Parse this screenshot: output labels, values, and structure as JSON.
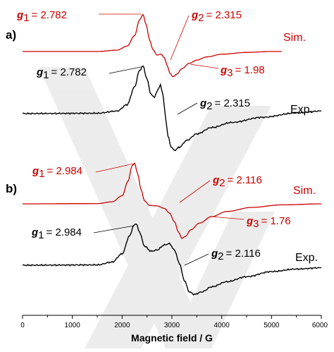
{
  "chart_data": {
    "type": "line",
    "xlabel": "Magnetic field / G",
    "xlim": [
      0,
      6000
    ],
    "x_ticks": [
      "0",
      "1000",
      "2000",
      "3000",
      "4000",
      "5000",
      "6000"
    ],
    "colors": {
      "simulated": "#cc0000",
      "experimental": "#000000"
    },
    "panels": [
      {
        "label": "a)",
        "series": [
          {
            "name": "Sim.",
            "color": "#cc0000",
            "points": [
              [
                0,
                0
              ],
              [
                1500,
                0
              ],
              [
                1900,
                0.3
              ],
              [
                2100,
                1.2
              ],
              [
                2250,
                3.5
              ],
              [
                2350,
                7.0
              ],
              [
                2420,
                8.2
              ],
              [
                2480,
                6.0
              ],
              [
                2550,
                2.6
              ],
              [
                2620,
                0.4
              ],
              [
                2700,
                -0.8
              ],
              [
                2780,
                -0.6
              ],
              [
                2850,
                -1.4
              ],
              [
                2900,
                -3.0
              ],
              [
                2960,
                -4.8
              ],
              [
                3020,
                -5.6
              ],
              [
                3100,
                -5.0
              ],
              [
                3200,
                -3.8
              ],
              [
                3350,
                -2.6
              ],
              [
                3500,
                -1.9
              ],
              [
                3700,
                -1.2
              ],
              [
                4000,
                -0.6
              ],
              [
                4500,
                -0.2
              ],
              [
                5000,
                0
              ],
              [
                5200,
                0
              ]
            ],
            "annotations": [
              {
                "sym": "g",
                "sub": "1",
                "value": "= 2.782"
              },
              {
                "sym": "g",
                "sub": "2",
                "value": "= 2.315"
              },
              {
                "sym": "g",
                "sub": "3",
                "value": "= 1.98"
              }
            ]
          },
          {
            "name": "Exp.",
            "color": "#000000",
            "points": [
              [
                0,
                0
              ],
              [
                1500,
                0.05
              ],
              [
                1900,
                0.4
              ],
              [
                2100,
                1.4
              ],
              [
                2250,
                4.2
              ],
              [
                2350,
                6.8
              ],
              [
                2420,
                7.5
              ],
              [
                2500,
                5.4
              ],
              [
                2580,
                3.0
              ],
              [
                2650,
                2.6
              ],
              [
                2720,
                3.8
              ],
              [
                2770,
                4.5
              ],
              [
                2820,
                3.0
              ],
              [
                2870,
                -0.5
              ],
              [
                2920,
                -3.5
              ],
              [
                2980,
                -5.2
              ],
              [
                3050,
                -5.8
              ],
              [
                3150,
                -5.3
              ],
              [
                3300,
                -4.2
              ],
              [
                3500,
                -3.2
              ],
              [
                3800,
                -2.2
              ],
              [
                4200,
                -1.4
              ],
              [
                4800,
                -0.6
              ],
              [
                5500,
                0.1
              ],
              [
                6000,
                0.4
              ]
            ],
            "annotations": [
              {
                "sym": "g",
                "sub": "1",
                "value": "= 2.782"
              },
              {
                "sym": "g",
                "sub": "2",
                "value": "= 2.315"
              }
            ]
          }
        ]
      },
      {
        "label": "b)",
        "series": [
          {
            "name": "Sim.",
            "color": "#cc0000",
            "points": [
              [
                0,
                0
              ],
              [
                1500,
                0.05
              ],
              [
                1800,
                0.4
              ],
              [
                2000,
                1.6
              ],
              [
                2120,
                4.5
              ],
              [
                2200,
                7.5
              ],
              [
                2250,
                8.0
              ],
              [
                2310,
                6.0
              ],
              [
                2380,
                2.8
              ],
              [
                2450,
                0.6
              ],
              [
                2550,
                -0.3
              ],
              [
                2700,
                -0.4
              ],
              [
                2850,
                -0.9
              ],
              [
                2950,
                -1.8
              ],
              [
                3050,
                -3.5
              ],
              [
                3130,
                -5.5
              ],
              [
                3200,
                -6.8
              ],
              [
                3270,
                -6.4
              ],
              [
                3380,
                -5.1
              ],
              [
                3550,
                -3.8
              ],
              [
                3800,
                -2.5
              ],
              [
                4100,
                -1.5
              ],
              [
                4600,
                -0.7
              ],
              [
                5200,
                -0.2
              ],
              [
                6000,
                0
              ]
            ],
            "annotations": [
              {
                "sym": "g",
                "sub": "1",
                "value": "= 2.984"
              },
              {
                "sym": "g",
                "sub": "2",
                "value": "= 2.116"
              },
              {
                "sym": "g",
                "sub": "3",
                "value": "= 1.76"
              }
            ]
          },
          {
            "name": "Exp.",
            "color": "#000000",
            "points": [
              [
                0,
                0
              ],
              [
                1500,
                0.05
              ],
              [
                1800,
                0.5
              ],
              [
                2000,
                1.8
              ],
              [
                2150,
                4.6
              ],
              [
                2230,
                6.2
              ],
              [
                2280,
                6.6
              ],
              [
                2350,
                5.2
              ],
              [
                2450,
                3.0
              ],
              [
                2580,
                2.2
              ],
              [
                2700,
                2.4
              ],
              [
                2850,
                3.2
              ],
              [
                2950,
                3.4
              ],
              [
                3050,
                2.4
              ],
              [
                3150,
                0.3
              ],
              [
                3250,
                -2.4
              ],
              [
                3350,
                -4.2
              ],
              [
                3450,
                -4.6
              ],
              [
                3600,
                -4.2
              ],
              [
                3800,
                -3.4
              ],
              [
                4100,
                -2.6
              ],
              [
                4500,
                -1.8
              ],
              [
                5000,
                -1.0
              ],
              [
                5500,
                -0.6
              ],
              [
                6000,
                -0.4
              ]
            ],
            "annotations": [
              {
                "sym": "g",
                "sub": "1",
                "value": "= 2.984"
              },
              {
                "sym": "g",
                "sub": "2",
                "value": "= 2.116"
              }
            ]
          }
        ]
      }
    ]
  }
}
